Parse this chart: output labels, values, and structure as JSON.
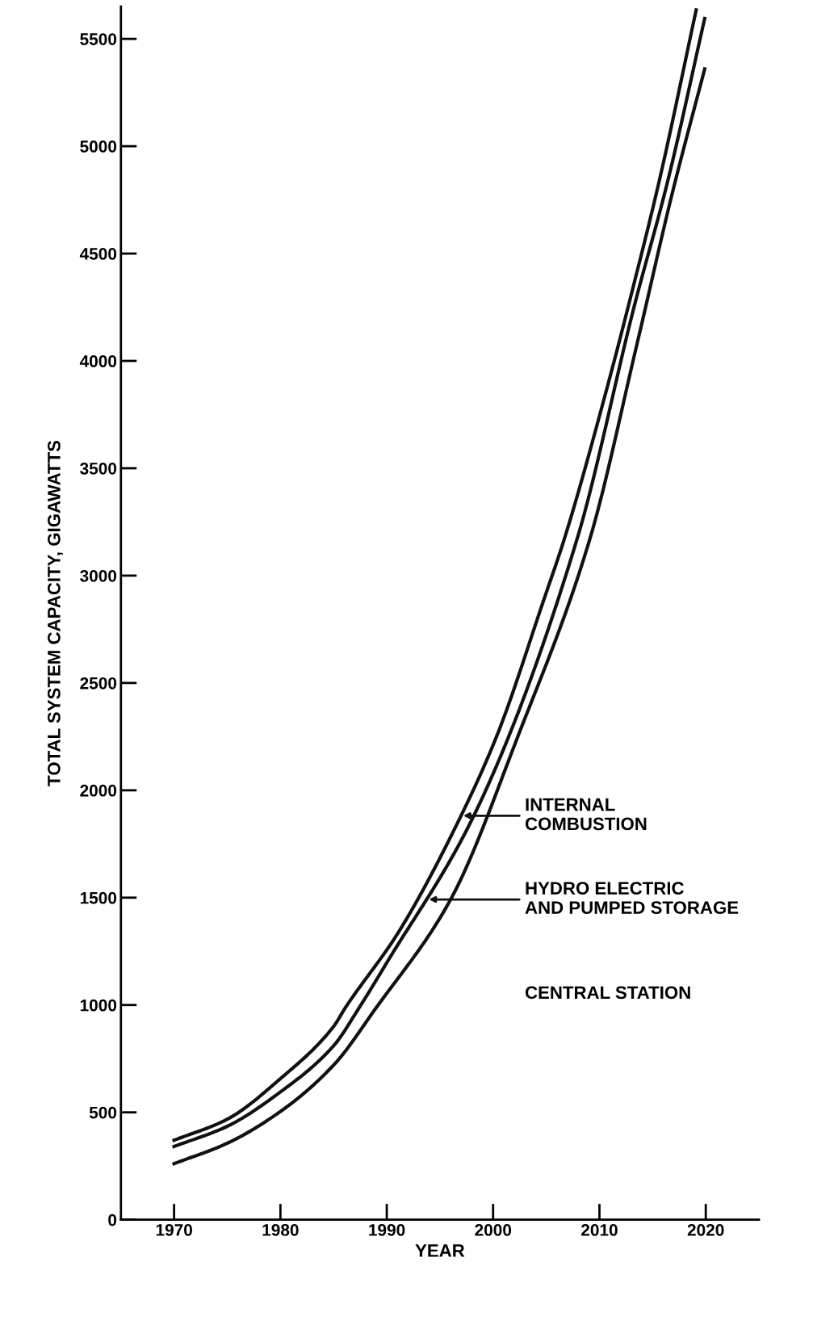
{
  "chart_data": {
    "type": "line",
    "xlabel": "YEAR",
    "ylabel": "TOTAL SYSTEM CAPACITY, GIGAWATTS",
    "series": [
      {
        "color": "#111111",
        "x": [
          1970,
          1975,
          1980,
          1985,
          1986.1,
          1991.1,
          1997.0,
          2000.4,
          2004.8,
          2006.7,
          2010.8,
          2013.1,
          2015.6,
          2019.1
        ],
        "values": [
          370,
          468,
          657,
          900,
          987,
          1339,
          1883,
          2260,
          2892,
          3171,
          3890,
          4330,
          4833,
          5635
        ]
      },
      {
        "color": "#111111",
        "x": [
          1970,
          1975,
          1980,
          1985,
          1987.4,
          1990,
          1998.2,
          2007.9,
          2013.3,
          2016.4,
          2019.9
        ],
        "values": [
          341,
          435,
          595,
          810,
          987,
          1197,
          1883,
          3171,
          4260,
          4833,
          5595
        ]
      },
      {
        "color": "#111111",
        "x": [
          1970,
          1975,
          1980,
          1985,
          1989.0,
          1996.0,
          2002.4,
          2009.1,
          2013.6,
          2016.8,
          2019.9
        ],
        "values": [
          261,
          356,
          504,
          720,
          987,
          1491,
          2260,
          3171,
          4093,
          4771,
          5360
        ]
      }
    ],
    "annotations": [
      "INTERNAL\nCOMBUSTION",
      "HYDRO ELECTRIC\nAND PUMPED STORAGE",
      "CENTRAL STATION"
    ],
    "xlim": [
      1965,
      2025
    ],
    "ylim": [
      0,
      5650
    ],
    "xticks": [
      1970,
      1980,
      1990,
      2000,
      2010,
      2020
    ],
    "yticks": [
      0,
      500,
      1000,
      1500,
      2000,
      2500,
      3000,
      3500,
      4000,
      4500,
      5000,
      5500
    ],
    "grid": false,
    "legend": false,
    "marker": "none",
    "line_style": "solid"
  }
}
